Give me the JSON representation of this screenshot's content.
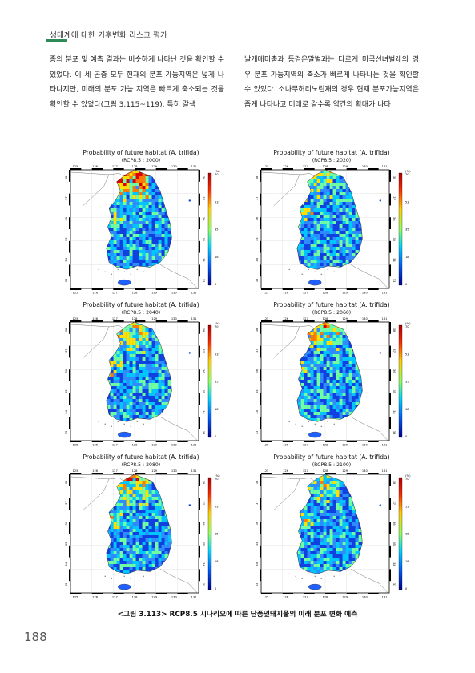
{
  "header": {
    "title": "생태계에 대한 기후변화 리스크 평가"
  },
  "body": {
    "left": "종의 분포 및 예측 결과는 비슷하게 나타난 것을 확인할 수 있었다. 이 세 곤충 모두 현재의 분포 가능지역은 넓게 나타나지만, 미래의 분포 가능 지역은 빠르게 축소되는 것을 확인할 수 있었다(그림 3.115~119). 특히 갈색",
    "right": "날개매미충과 등검은말벌과는 다르게 미국선녀벌레의 경우 분포 가능지역의 축소가 빠르게 나타나는 것을 확인할 수 있었다. 소나무허리노린재의 경우 현재 분포가능지역은 좁게 나타나고 미래로 갈수록 약간의 확대가 나타"
  },
  "maps": {
    "title": "Probability of future habitat (A. trifida)",
    "legend_unit": "(%)",
    "legend_ticks": [
      "70",
      "53",
      "35",
      "18",
      "0"
    ],
    "lon_ticks": [
      "125",
      "126",
      "127",
      "128",
      "129",
      "130",
      "131"
    ],
    "lat_ticks": [
      "38",
      "37",
      "36",
      "35",
      "34",
      "33"
    ],
    "panels": [
      {
        "subtitle": "(RCP8.5 : 2000)",
        "red_north": 0.95
      },
      {
        "subtitle": "(RCP8.5 : 2020)",
        "red_north": 0.35
      },
      {
        "subtitle": "(RCP8.5 : 2040)",
        "red_north": 0.55
      },
      {
        "subtitle": "(RCP8.5 : 2060)",
        "red_north": 0.5
      },
      {
        "subtitle": "(RCP8.5 : 2080)",
        "red_north": 0.6
      },
      {
        "subtitle": "(RCP8.5 : 2100)",
        "red_north": 0.45
      }
    ]
  },
  "caption": "<그림 3.113> RCP8.5 시나리오에 따른 단풍잎돼지풀의 미래 분포 변화 예측",
  "page_number": "188"
}
